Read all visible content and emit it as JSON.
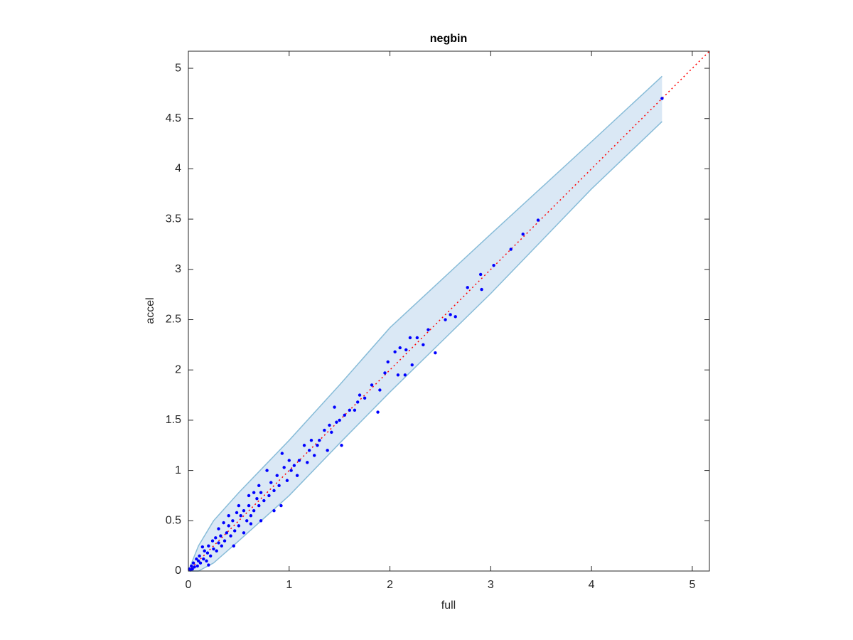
{
  "chart_data": {
    "type": "scatter",
    "title": "negbin",
    "xlabel": "full",
    "ylabel": "accel",
    "xlim": [
      0,
      5.17
    ],
    "ylim": [
      0,
      5.17
    ],
    "xticks": [
      0,
      1,
      2,
      3,
      4,
      5
    ],
    "yticks": [
      0,
      0.5,
      1,
      1.5,
      2,
      2.5,
      3,
      3.5,
      4,
      4.5,
      5
    ],
    "band": {
      "color": "#dae8f5",
      "edge_color": "#88bcd8",
      "x": [
        0,
        0.1,
        0.25,
        0.5,
        1,
        1.5,
        2,
        3,
        4,
        4.7
      ],
      "upper": [
        0,
        0.25,
        0.5,
        0.78,
        1.3,
        1.85,
        2.42,
        3.35,
        4.27,
        4.92
      ],
      "lower": [
        0,
        0,
        0.08,
        0.3,
        0.75,
        1.27,
        1.78,
        2.76,
        3.8,
        4.47
      ]
    },
    "reference": {
      "color": "#ff0000",
      "x": [
        0,
        5.17
      ],
      "y": [
        0,
        5.17
      ]
    },
    "points": {
      "color": "#0000ff",
      "x": [
        4.7,
        3.47,
        3.32,
        3.2,
        3.03,
        2.9,
        2.91,
        2.77,
        2.65,
        2.6,
        2.55,
        2.45,
        2.38,
        2.33,
        2.27,
        2.2,
        2.22,
        2.16,
        2.1,
        2.08,
        2.15,
        2.05,
        1.98,
        1.95,
        1.9,
        1.88,
        1.82,
        1.75,
        1.7,
        1.68,
        1.65,
        1.6,
        1.55,
        1.52,
        1.5,
        1.45,
        1.47,
        1.42,
        1.4,
        1.38,
        1.35,
        1.3,
        1.28,
        1.25,
        1.22,
        1.2,
        1.18,
        1.15,
        1.1,
        1.08,
        1.05,
        1.02,
        1.0,
        0.98,
        0.95,
        0.93,
        0.9,
        0.88,
        0.85,
        0.82,
        0.8,
        0.78,
        0.75,
        0.72,
        0.7,
        0.68,
        0.65,
        0.62,
        0.6,
        0.58,
        0.55,
        0.52,
        0.5,
        0.48,
        0.46,
        0.44,
        0.42,
        0.4,
        0.38,
        0.36,
        0.35,
        0.33,
        0.32,
        0.3,
        0.28,
        0.27,
        0.25,
        0.24,
        0.22,
        0.2,
        0.19,
        0.18,
        0.16,
        0.15,
        0.14,
        0.12,
        0.11,
        0.1,
        0.09,
        0.08,
        0.06,
        0.05,
        0.04,
        0.03,
        0.02,
        0.01,
        0.2,
        0.45,
        0.55,
        0.62,
        0.72,
        0.92,
        0.85,
        0.4,
        0.3,
        0.5,
        0.6,
        0.7,
        0.65
      ],
      "y": [
        4.7,
        3.49,
        3.35,
        3.2,
        3.04,
        2.95,
        2.8,
        2.82,
        2.53,
        2.55,
        2.5,
        2.17,
        2.4,
        2.25,
        2.32,
        2.32,
        2.05,
        2.2,
        2.22,
        1.95,
        1.95,
        2.18,
        2.08,
        1.97,
        1.8,
        1.58,
        1.85,
        1.72,
        1.75,
        1.68,
        1.6,
        1.6,
        1.55,
        1.25,
        1.5,
        1.63,
        1.48,
        1.38,
        1.45,
        1.2,
        1.4,
        1.3,
        1.25,
        1.15,
        1.3,
        1.2,
        1.08,
        1.25,
        1.1,
        0.95,
        1.05,
        1.0,
        1.1,
        0.9,
        1.03,
        1.17,
        0.85,
        0.95,
        0.8,
        0.88,
        0.75,
        1.0,
        0.7,
        0.78,
        0.65,
        0.72,
        0.6,
        0.55,
        0.65,
        0.5,
        0.6,
        0.55,
        0.45,
        0.58,
        0.4,
        0.5,
        0.35,
        0.45,
        0.38,
        0.3,
        0.48,
        0.25,
        0.35,
        0.28,
        0.2,
        0.33,
        0.22,
        0.3,
        0.15,
        0.25,
        0.18,
        0.1,
        0.2,
        0.12,
        0.24,
        0.08,
        0.15,
        0.1,
        0.05,
        0.12,
        0.04,
        0.08,
        0.02,
        0.05,
        0.01,
        0.02,
        0.06,
        0.25,
        0.38,
        0.47,
        0.5,
        0.65,
        0.6,
        0.55,
        0.42,
        0.65,
        0.75,
        0.85,
        0.78
      ]
    }
  }
}
